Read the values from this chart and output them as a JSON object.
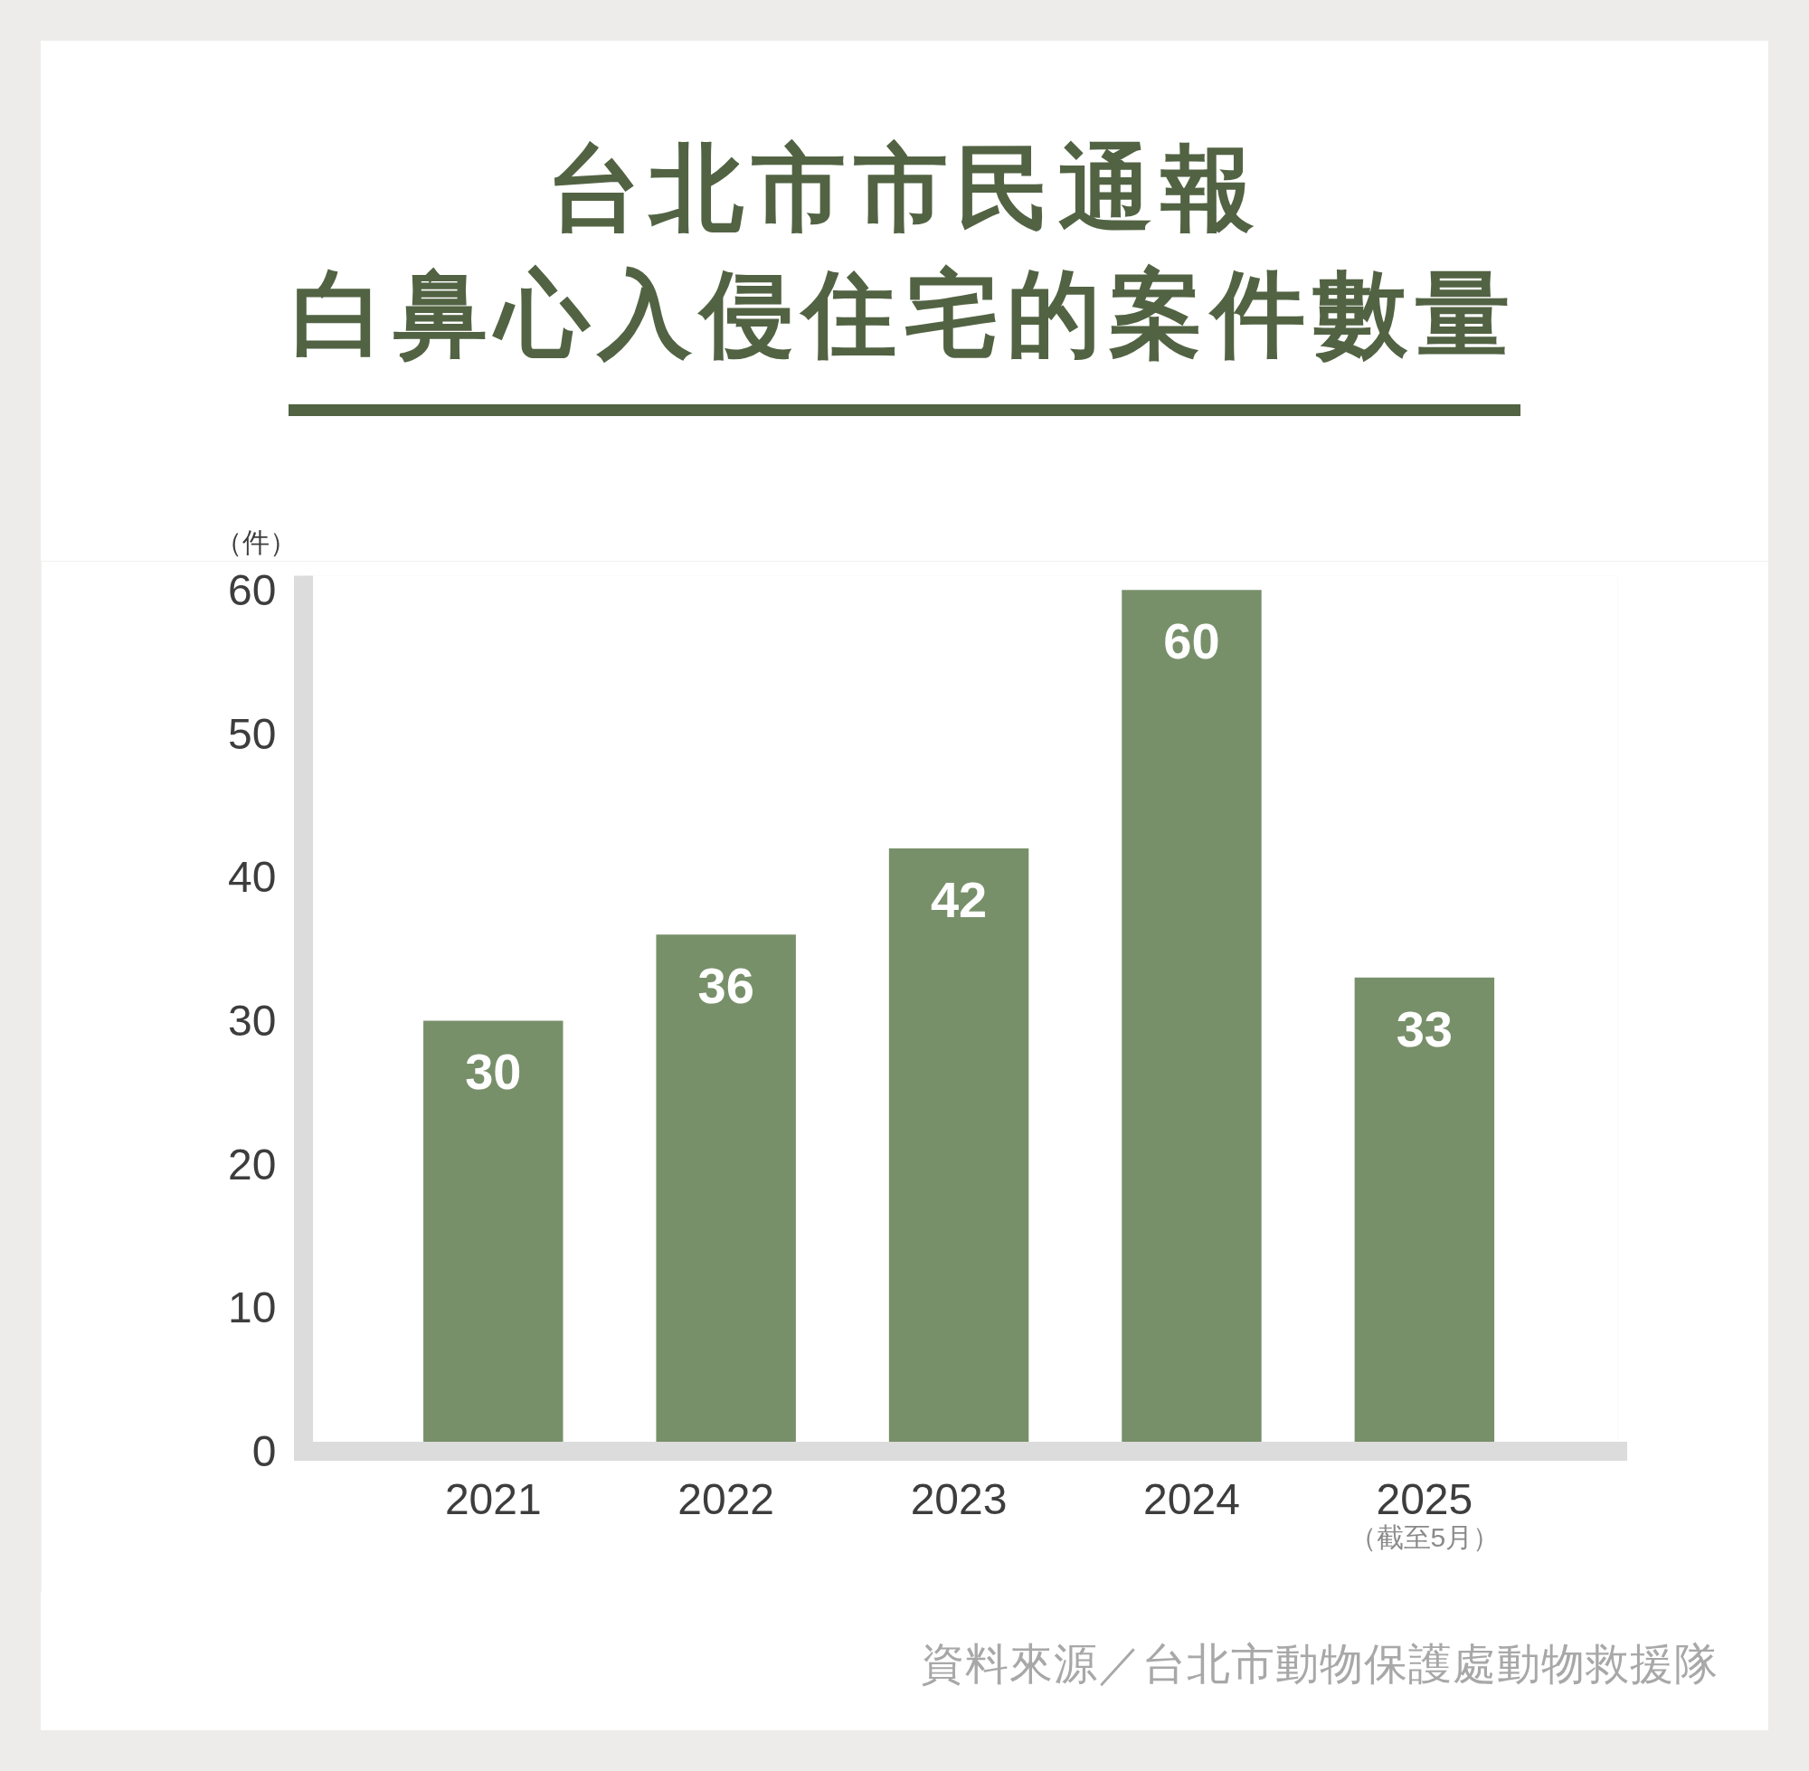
{
  "chart_data": {
    "type": "bar",
    "title": "台北市市民通報白鼻心入侵住宅的案件數量",
    "ylabel": "（件）",
    "categories": [
      "2021",
      "2022",
      "2023",
      "2024",
      "2025"
    ],
    "values": [
      30,
      36,
      42,
      60,
      33
    ],
    "color": "#78906a",
    "ylim": [
      0,
      61
    ],
    "yticks": [
      0,
      10,
      20,
      30,
      40,
      50,
      60
    ],
    "data_labels": true,
    "annotations": [
      "（截至5月）",
      "資料來源／台北市動物保護處動物救援隊"
    ]
  }
}
